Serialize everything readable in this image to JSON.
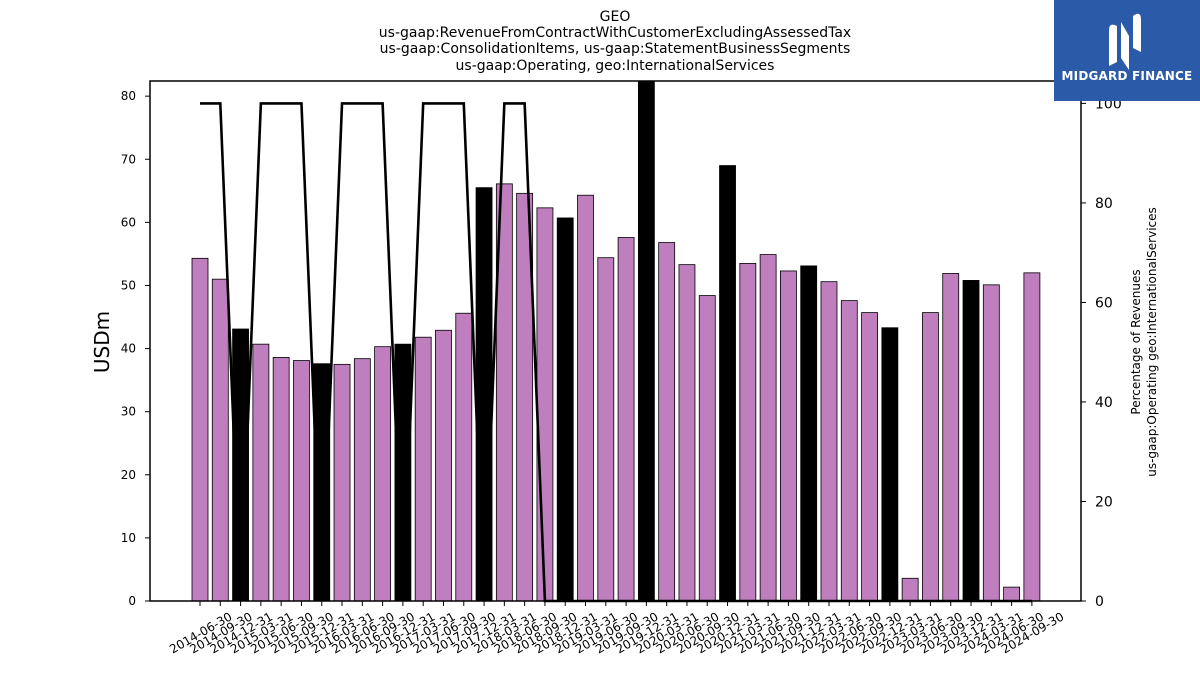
{
  "header": {
    "title_lines": [
      "GEO",
      "us-gaap:RevenueFromContractWithCustomerExcludingAssessedTax",
      "us-gaap:ConsolidationItems, us-gaap:StatementBusinessSegments",
      "us-gaap:Operating, geo:InternationalServices"
    ]
  },
  "logo": {
    "text": "MIDGARD FINANCE",
    "icon": "midgard-logo-icon",
    "color": "#2b5aa8"
  },
  "chart_data": {
    "type": "bar",
    "ylabel": "USDm",
    "y2label_lines": [
      "Percentage of Revenues",
      "us-gaap:Operating geo:InternationalServices"
    ],
    "ylim": [
      0,
      82.4
    ],
    "y2lim": [
      0,
      104.5
    ],
    "yticks": [
      0,
      10,
      20,
      30,
      40,
      50,
      60,
      70,
      80
    ],
    "y2ticks": [
      0,
      20,
      40,
      60,
      80,
      100
    ],
    "colors": {
      "bar_default": "#bf7fbf",
      "bar_highlight": "#000000",
      "line": "#000000"
    },
    "categories": [
      "2014-06-30",
      "2014-09-30",
      "2014-12-31",
      "2015-03-31",
      "2015-06-30",
      "2015-09-30",
      "2015-12-31",
      "2016-03-31",
      "2016-06-30",
      "2016-09-30",
      "2016-12-31",
      "2017-03-31",
      "2017-06-30",
      "2017-09-30",
      "2017-12-31",
      "2018-03-31",
      "2018-06-30",
      "2018-09-30",
      "2018-12-31",
      "2019-03-31",
      "2019-06-30",
      "2019-09-30",
      "2019-12-31",
      "2020-03-31",
      "2020-06-30",
      "2020-09-30",
      "2020-12-31",
      "2021-03-31",
      "2021-06-30",
      "2021-09-30",
      "2021-12-31",
      "2022-03-31",
      "2022-06-30",
      "2022-09-30",
      "2022-12-31",
      "2023-03-31",
      "2023-06-30",
      "2023-09-30",
      "2023-12-31",
      "2024-03-31",
      "2024-06-30",
      "2024-09-30"
    ],
    "series": [
      {
        "kind": "bar",
        "values": [
          54.3,
          51.0,
          43.1,
          40.7,
          38.6,
          38.1,
          37.6,
          37.5,
          38.4,
          40.3,
          40.7,
          41.8,
          42.9,
          45.6,
          65.5,
          66.1,
          64.6,
          62.3,
          60.7,
          64.3,
          54.4,
          57.6,
          82.4,
          56.8,
          53.3,
          48.4,
          69.0,
          53.5,
          54.9,
          52.3,
          53.1,
          50.6,
          47.6,
          45.7,
          43.3,
          3.6,
          45.7,
          51.9,
          50.8,
          50.1,
          2.2,
          52.0
        ],
        "highlight": [
          false,
          false,
          true,
          false,
          false,
          false,
          true,
          false,
          false,
          false,
          true,
          false,
          false,
          false,
          true,
          false,
          false,
          false,
          true,
          false,
          false,
          false,
          true,
          false,
          false,
          false,
          true,
          false,
          false,
          false,
          true,
          false,
          false,
          false,
          true,
          false,
          false,
          false,
          true,
          false,
          false,
          false
        ]
      },
      {
        "kind": "line",
        "axis": "right",
        "values": [
          100,
          100,
          0,
          100,
          100,
          100,
          0,
          100,
          100,
          100,
          0,
          100,
          100,
          100,
          0,
          100,
          100,
          0,
          0,
          0,
          0,
          0,
          0,
          0,
          0,
          0,
          0,
          0,
          0,
          0,
          0,
          0,
          0,
          0,
          0,
          0,
          0,
          0,
          0,
          0,
          0,
          0
        ]
      }
    ]
  }
}
